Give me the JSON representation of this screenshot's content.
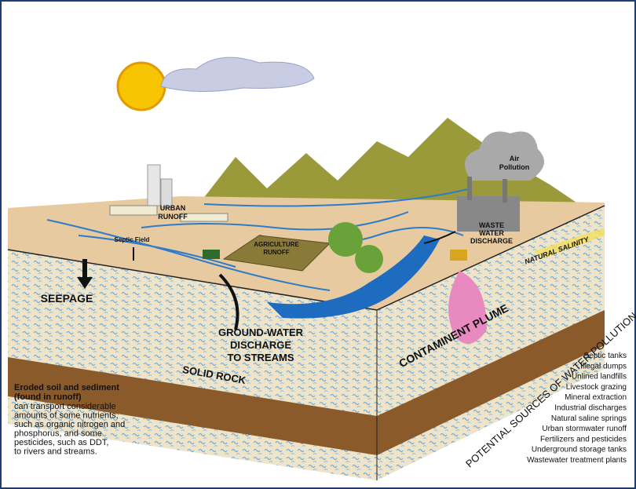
{
  "labels": {
    "air_pollution": [
      "Air",
      "Pollution"
    ],
    "urban_runoff": [
      "URBAN",
      "RUNOFF"
    ],
    "septic_field": "Septic Field",
    "agriculture_runoff": [
      "AGRICULTURE",
      "RUNOFF"
    ],
    "waste_water_discharge": [
      "WASTE",
      "WATER",
      "DISCHARGE"
    ],
    "natural_salinity": "NATURAL SALINITY",
    "seepage": "SEEPAGE",
    "groundwater_discharge": [
      "GROUND-WATER",
      "DISCHARGE",
      "TO STREAMS"
    ],
    "contaminent_plume": "CONTAMINENT PLUME",
    "solid_rock": "SOLID ROCK",
    "potential_sources": "POTENTIAL SOURCES OF WATER POLLUTION"
  },
  "sources": [
    "Septic tanks",
    "Illegal dumps",
    "Unlined landfills",
    "Livestock grazing",
    "Mineral extraction",
    "Industrial discharges",
    "Natural saline springs",
    "Urban stormwater runoff",
    "Fertilizers and pesticides",
    "Underground storage tanks",
    "Wastewater treatment plants"
  ],
  "note": {
    "title": [
      "Eroded soil and sediment",
      "(found in runoff)"
    ],
    "body": [
      "can transport considerable",
      "amounts of some nutrients,",
      "such as organic nitrogen and",
      "phosphorus, and some",
      "pesticides, such as DDT,",
      "to rivers and streams."
    ]
  }
}
